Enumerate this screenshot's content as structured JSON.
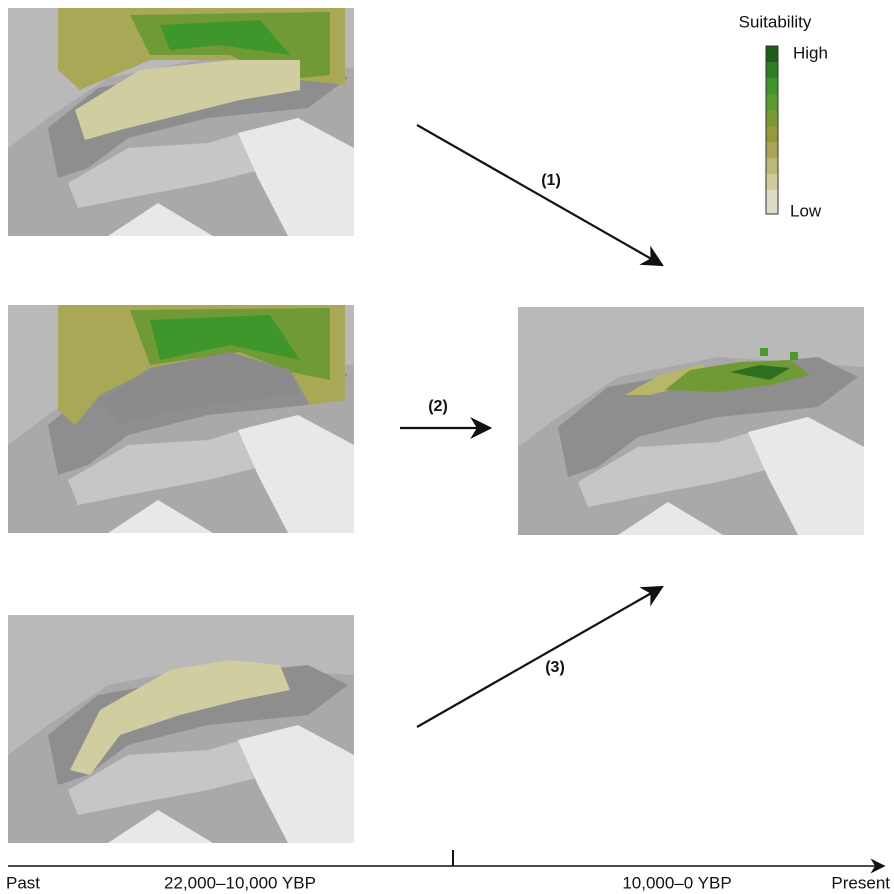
{
  "legend": {
    "title": "Suitability",
    "high": "High",
    "low": "Low"
  },
  "arrows": [
    {
      "label": "(1)"
    },
    {
      "label": "(2)"
    },
    {
      "label": "(3)"
    }
  ],
  "timeline": {
    "start": "Past",
    "period_1": "22,000–10,000 YBP",
    "period_2": "10,000–0 YBP",
    "end": "Present"
  }
}
